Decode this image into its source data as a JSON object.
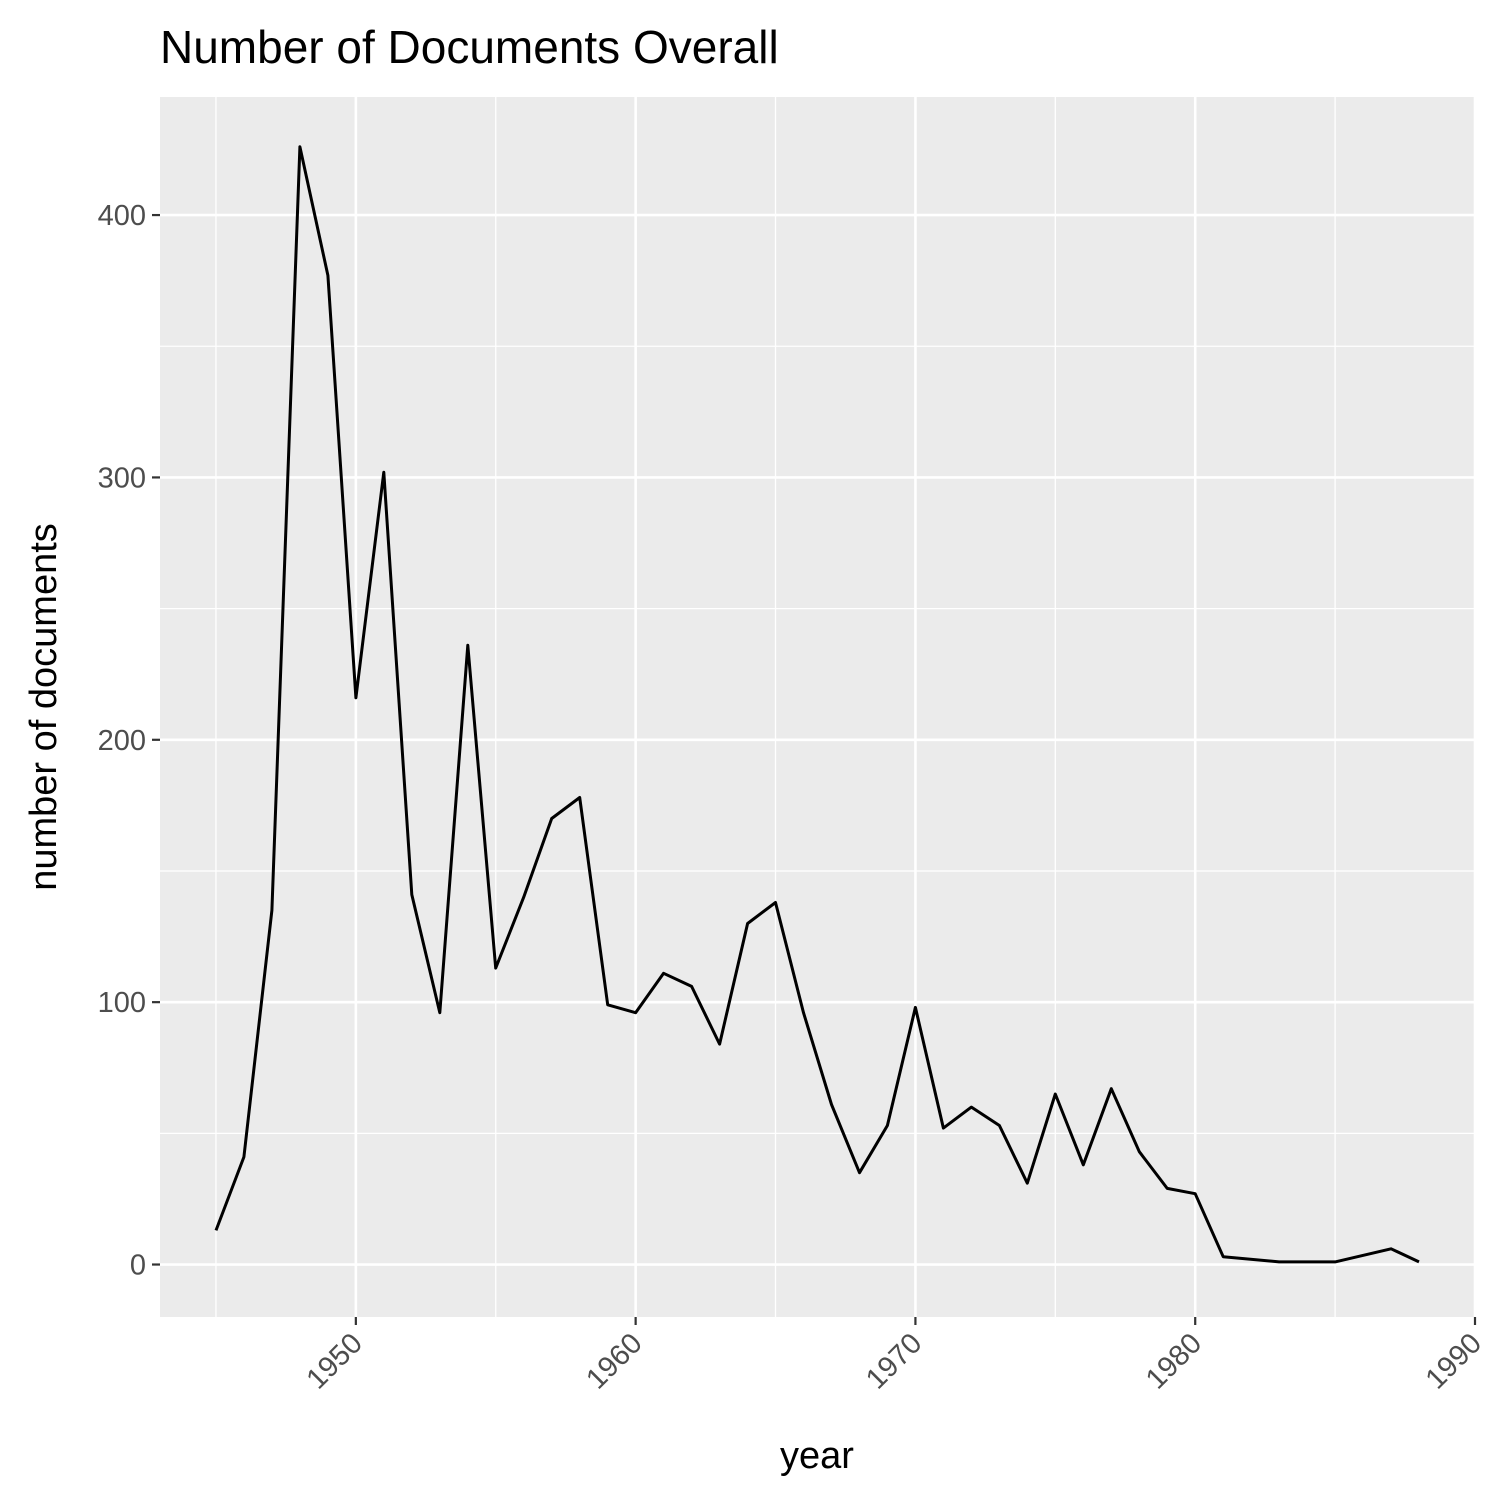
{
  "chart_data": {
    "type": "line",
    "title": "Number of Documents Overall",
    "xlabel": "year",
    "ylabel": "number of documents",
    "xlim": [
      1943.0,
      1990.0
    ],
    "ylim": [
      -20,
      445
    ],
    "x_ticks": [
      1950,
      1960,
      1970,
      1980,
      1990
    ],
    "x_tick_labels": [
      "1950",
      "1960",
      "1970",
      "1980",
      "1990"
    ],
    "x_minor_ticks": [
      1945,
      1955,
      1965,
      1975,
      1985
    ],
    "y_ticks": [
      0,
      100,
      200,
      300,
      400
    ],
    "y_tick_labels": [
      "0",
      "100",
      "200",
      "300",
      "400"
    ],
    "y_minor_ticks": [
      50,
      150,
      250,
      350
    ],
    "grid": true,
    "colors": {
      "panel": "#ebebeb",
      "grid": "#ffffff",
      "line": "#000000",
      "tick": "#333333"
    },
    "series": [
      {
        "x": [
          1945,
          1946,
          1947,
          1948,
          1949,
          1950,
          1951,
          1952,
          1953,
          1954,
          1955,
          1956,
          1957,
          1958,
          1959,
          1960,
          1961,
          1962,
          1963,
          1964,
          1965,
          1966,
          1967,
          1968,
          1969,
          1970,
          1971,
          1972,
          1973,
          1974,
          1975,
          1976,
          1977,
          1978,
          1979,
          1980,
          1981,
          1983,
          1985,
          1987,
          1988
        ],
        "values": [
          13,
          41,
          135,
          426,
          377,
          216,
          302,
          141,
          96,
          236,
          113,
          140,
          170,
          178,
          99,
          96,
          111,
          106,
          84,
          130,
          138,
          96,
          61,
          35,
          53,
          98,
          52,
          60,
          53,
          31,
          65,
          38,
          67,
          43,
          29,
          27,
          3,
          1,
          1,
          6,
          1
        ]
      }
    ]
  }
}
